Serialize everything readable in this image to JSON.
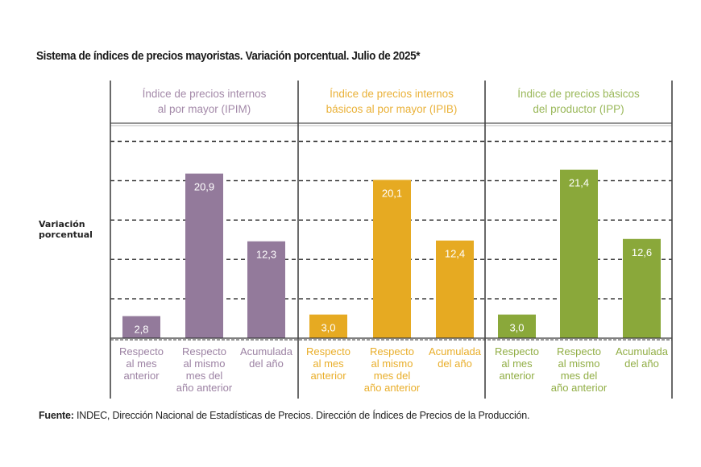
{
  "chart_data": {
    "type": "bar",
    "title": "Sistema de índices de precios mayoristas. Variación porcentual. Julio de 2025*",
    "ylabel": "Variación porcentual",
    "xlabel": "",
    "ylim": [
      0,
      27.3
    ],
    "grid": true,
    "gridlines": [
      5,
      10,
      15,
      20,
      25
    ],
    "groups": [
      {
        "name": "Índice de precios internos al por mayor (IPIM)",
        "header_lines": [
          "Índice de precios internos",
          "al por mayor (IPIM)"
        ],
        "color": "#937a9b",
        "categories": [
          {
            "lines": [
              "Respecto",
              "al mes",
              "anterior"
            ]
          },
          {
            "lines": [
              "Respecto",
              "al mismo",
              "mes del",
              "año anterior"
            ]
          },
          {
            "lines": [
              "Acumulada",
              "del año"
            ]
          }
        ],
        "values": [
          2.8,
          20.9,
          12.3
        ],
        "labels": [
          "2,8",
          "20,9",
          "12,3"
        ]
      },
      {
        "name": "Índice de precios internos básicos al por mayor (IPIB)",
        "header_lines": [
          "Índice de precios internos",
          "básicos al por mayor (IPIB)"
        ],
        "color": "#e6aa22",
        "categories": [
          {
            "lines": [
              "Respecto",
              "al mes",
              "anterior"
            ]
          },
          {
            "lines": [
              "Respecto",
              "al mismo",
              "mes del",
              "año anterior"
            ]
          },
          {
            "lines": [
              "Acumulada",
              "del año"
            ]
          }
        ],
        "values": [
          3.0,
          20.1,
          12.4
        ],
        "labels": [
          "3,0",
          "20,1",
          "12,4"
        ]
      },
      {
        "name": "Índice de precios básicos del productor (IPP)",
        "header_lines": [
          "Índice de precios básicos",
          "del productor (IPP)"
        ],
        "color": "#8aa83a",
        "categories": [
          {
            "lines": [
              "Respecto",
              "al mes",
              "anterior"
            ]
          },
          {
            "lines": [
              "Respecto",
              "al mismo",
              "mes del",
              "año anterior"
            ]
          },
          {
            "lines": [
              "Acumulada",
              "del año"
            ]
          }
        ],
        "values": [
          3.0,
          21.4,
          12.6
        ],
        "labels": [
          "3,0",
          "21,4",
          "12,6"
        ]
      }
    ],
    "header_text_colors": [
      "#a48aa9",
      "#eab23a",
      "#9ab85a"
    ],
    "category_text_colors": [
      "#9c82a3",
      "#e9ae2a",
      "#91ae45"
    ]
  },
  "source": {
    "label": "Fuente:",
    "text": " INDEC, Dirección Nacional de Estadísticas de Precios. Dirección de Índices de Precios de la Producción."
  }
}
